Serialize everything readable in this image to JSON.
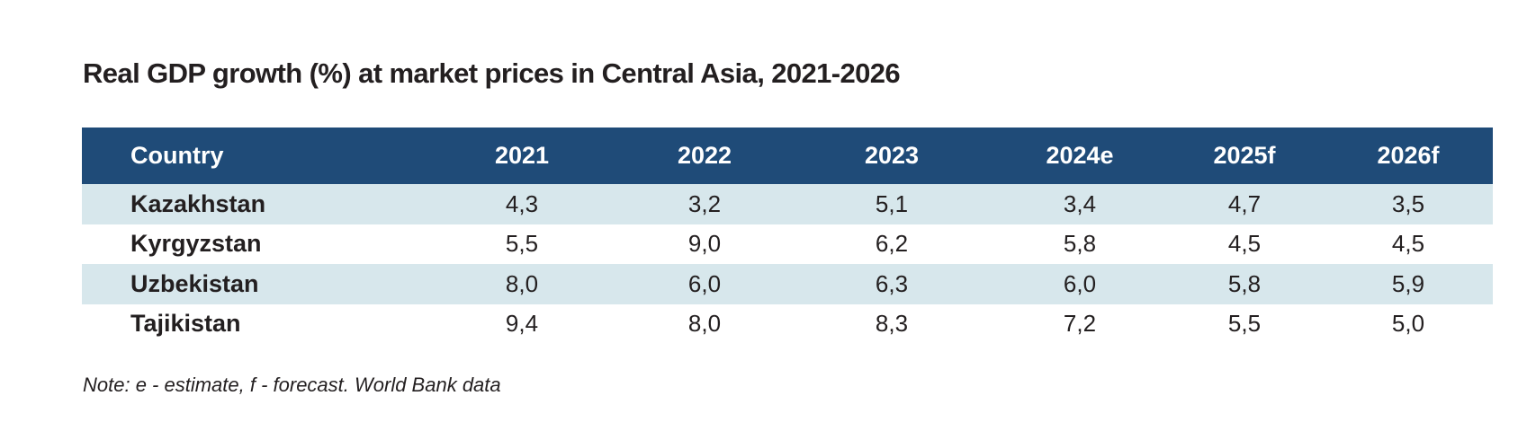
{
  "chart_data": {
    "type": "table",
    "title": "Real GDP growth (%) at market prices in Central Asia, 2021-2026",
    "columns": [
      "Country",
      "2021",
      "2022",
      "2023",
      "2024e",
      "2025f",
      "2026f"
    ],
    "rows": [
      {
        "country": "Kazakhstan",
        "values": [
          "4,3",
          "3,2",
          "5,1",
          "3,4",
          "4,7",
          "3,5"
        ]
      },
      {
        "country": "Kyrgyzstan",
        "values": [
          "5,5",
          "9,0",
          "6,2",
          "5,8",
          "4,5",
          "4,5"
        ]
      },
      {
        "country": "Uzbekistan",
        "values": [
          "8,0",
          "6,0",
          "6,3",
          "6,0",
          "5,8",
          "5,9"
        ]
      },
      {
        "country": "Tajikistan",
        "values": [
          "9,4",
          "8,0",
          "8,3",
          "7,2",
          "5,5",
          "5,0"
        ]
      }
    ],
    "note": "Note: e - estimate, f - forecast. World Bank data"
  },
  "colors": {
    "header_background": "#1f4b78",
    "header_text": "#ffffff",
    "shaded_row": "#d7e7ec",
    "text": "#231f20"
  }
}
